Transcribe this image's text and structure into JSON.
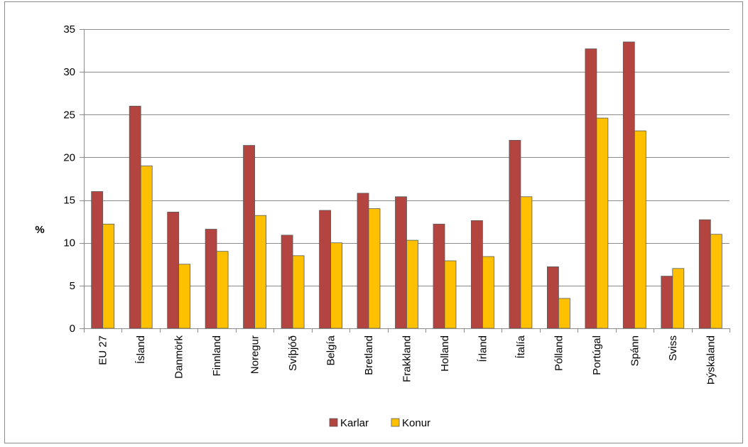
{
  "chart_data": {
    "type": "bar",
    "title": "",
    "xlabel": "",
    "ylabel": "%",
    "ylim": [
      0,
      35
    ],
    "yticks": [
      0,
      5,
      10,
      15,
      20,
      25,
      30,
      35
    ],
    "grid": true,
    "legend_position": "bottom",
    "categories": [
      "EU 27",
      "Ísland",
      "Danmörk",
      "Finnland",
      "Noregur",
      "Svíþjóð",
      "Belgía",
      "Bretland",
      "Frakkland",
      "Holland",
      "Írland",
      "Ítalía",
      "Pólland",
      "Portúgal",
      "Spánn",
      "Sviss",
      "Þýskaland"
    ],
    "series": [
      {
        "name": "Karlar",
        "color": "#b3443f",
        "values": [
          16.0,
          26.0,
          13.6,
          11.6,
          21.4,
          10.9,
          13.8,
          15.8,
          15.4,
          12.2,
          12.6,
          22.0,
          7.2,
          32.7,
          33.5,
          6.1,
          12.7
        ]
      },
      {
        "name": "Konur",
        "color": "#ffc000",
        "values": [
          12.2,
          19.0,
          7.5,
          9.0,
          13.2,
          8.5,
          10.0,
          14.0,
          10.3,
          7.9,
          8.4,
          15.4,
          3.5,
          24.6,
          23.1,
          7.0,
          11.0
        ]
      }
    ]
  }
}
